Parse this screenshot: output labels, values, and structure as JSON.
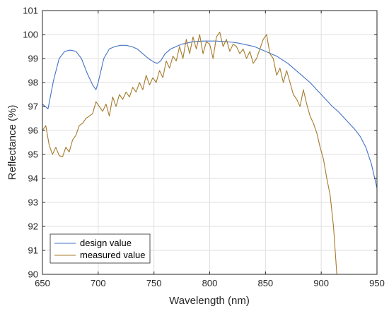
{
  "chart_data": {
    "type": "line",
    "xlabel": "Wavelength (nm)",
    "ylabel": "Reflectance (%)",
    "xlim": [
      650,
      950
    ],
    "ylim": [
      90,
      101
    ],
    "xticks": [
      650,
      700,
      750,
      800,
      850,
      900,
      950
    ],
    "yticks": [
      90,
      91,
      92,
      93,
      94,
      95,
      96,
      97,
      98,
      99,
      100,
      101
    ],
    "grid": true,
    "legend_position": "bottom-left",
    "series": [
      {
        "name": "design value",
        "color": "#4472C4",
        "x": [
          650,
          655,
          660,
          665,
          670,
          675,
          680,
          685,
          690,
          695,
          698,
          700,
          705,
          710,
          715,
          720,
          725,
          730,
          735,
          740,
          745,
          750,
          753,
          756,
          760,
          765,
          770,
          775,
          780,
          785,
          790,
          795,
          800,
          805,
          810,
          815,
          820,
          825,
          830,
          835,
          840,
          845,
          850,
          855,
          860,
          865,
          870,
          875,
          880,
          885,
          890,
          895,
          900,
          905,
          910,
          915,
          920,
          925,
          930,
          935,
          940,
          945,
          950
        ],
        "y": [
          97.1,
          96.9,
          98.1,
          99.0,
          99.3,
          99.35,
          99.3,
          99.0,
          98.4,
          97.9,
          97.7,
          98.0,
          99.0,
          99.4,
          99.5,
          99.55,
          99.55,
          99.5,
          99.4,
          99.2,
          99.0,
          98.85,
          98.8,
          98.9,
          99.2,
          99.4,
          99.5,
          99.6,
          99.65,
          99.7,
          99.72,
          99.73,
          99.73,
          99.73,
          99.72,
          99.7,
          99.68,
          99.65,
          99.6,
          99.55,
          99.5,
          99.4,
          99.3,
          99.2,
          99.1,
          98.95,
          98.8,
          98.6,
          98.4,
          98.2,
          98.0,
          97.75,
          97.5,
          97.25,
          97.0,
          96.8,
          96.55,
          96.3,
          96.05,
          95.75,
          95.3,
          94.6,
          93.6
        ]
      },
      {
        "name": "measured value",
        "color": "#A57A2A",
        "x": [
          650,
          653,
          656,
          659,
          662,
          665,
          668,
          671,
          674,
          677,
          680,
          683,
          686,
          689,
          692,
          695,
          698,
          701,
          704,
          707,
          710,
          713,
          716,
          719,
          722,
          725,
          728,
          731,
          734,
          737,
          740,
          743,
          746,
          749,
          752,
          755,
          758,
          761,
          764,
          767,
          770,
          773,
          776,
          779,
          782,
          785,
          788,
          791,
          794,
          797,
          800,
          803,
          806,
          809,
          812,
          815,
          818,
          821,
          824,
          827,
          830,
          833,
          836,
          839,
          842,
          845,
          848,
          851,
          854,
          857,
          860,
          863,
          866,
          869,
          872,
          875,
          878,
          881,
          884,
          887,
          890,
          893,
          896,
          899,
          902,
          905,
          908,
          911,
          914
        ],
        "y": [
          96.0,
          96.2,
          95.4,
          95.0,
          95.3,
          94.95,
          94.9,
          95.3,
          95.1,
          95.6,
          95.8,
          96.2,
          96.3,
          96.5,
          96.6,
          96.7,
          97.2,
          97.0,
          96.8,
          97.1,
          96.6,
          97.4,
          97.0,
          97.5,
          97.3,
          97.6,
          97.4,
          97.8,
          97.6,
          98.0,
          97.7,
          98.3,
          97.9,
          98.2,
          98.0,
          98.5,
          98.2,
          98.9,
          98.6,
          99.1,
          98.9,
          99.5,
          99.0,
          99.8,
          99.2,
          99.9,
          99.4,
          100.0,
          99.2,
          99.7,
          99.6,
          99.0,
          99.9,
          100.1,
          99.5,
          99.8,
          99.3,
          99.6,
          99.5,
          99.2,
          99.4,
          99.0,
          99.3,
          98.8,
          99.0,
          99.4,
          99.8,
          100.0,
          99.2,
          99.0,
          98.3,
          98.6,
          98.0,
          98.5,
          98.0,
          97.5,
          97.3,
          97.0,
          97.7,
          97.1,
          96.6,
          96.3,
          95.9,
          95.3,
          94.8,
          94.0,
          93.3,
          92.0,
          90.0
        ]
      }
    ]
  }
}
